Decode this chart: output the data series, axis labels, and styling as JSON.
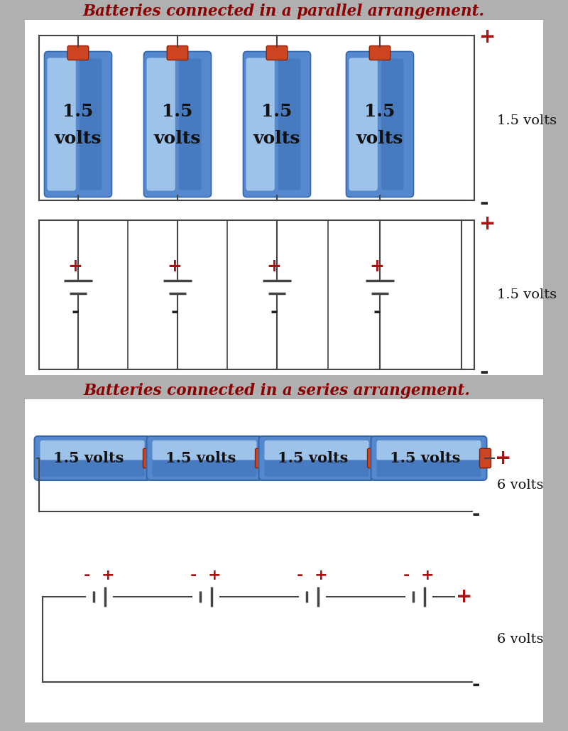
{
  "bg_color": "#b0b0b0",
  "white": "#ffffff",
  "red": "#aa1111",
  "black": "#111111",
  "dark_red": "#8b0000",
  "parallel_title": "Batteries connected in a parallel arrangement.",
  "series_title": "Batteries connected in a series arrangement.",
  "volt_label_15": "1.5 volts",
  "volt_label_6": "6 volts",
  "plus": "+",
  "minus": "-",
  "wire_color": "#444444",
  "batt_blue1": "#7ab4e8",
  "batt_blue2": "#4a8cc8",
  "batt_blue3": "#c8dff5",
  "batt_cap_red": "#cc4422",
  "batt_cap_dark": "#882200"
}
